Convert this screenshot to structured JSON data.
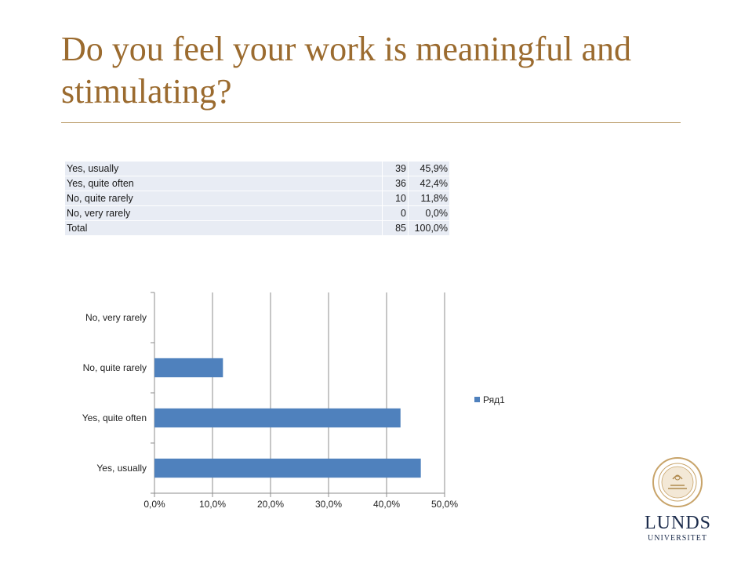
{
  "slide": {
    "title": "Do you feel your work is meaningful and stimulating?"
  },
  "table": {
    "rows": [
      {
        "label": "Yes, usually",
        "count": "39",
        "percent": "45,9%"
      },
      {
        "label": "Yes, quite often",
        "count": "36",
        "percent": "42,4%"
      },
      {
        "label": "No, quite rarely",
        "count": "10",
        "percent": "11,8%"
      },
      {
        "label": "No, very rarely",
        "count": "0",
        "percent": "0,0%"
      },
      {
        "label": "Total",
        "count": "85",
        "percent": "100,0%"
      }
    ]
  },
  "chart_data": {
    "type": "bar",
    "orientation": "horizontal",
    "categories": [
      "No, very rarely",
      "No, quite rarely",
      "Yes, quite often",
      "Yes, usually"
    ],
    "series": [
      {
        "name": "Ряд1",
        "values": [
          0.0,
          11.8,
          42.4,
          45.9
        ],
        "color": "#4f81bd"
      }
    ],
    "xlim": [
      0,
      50
    ],
    "x_ticks": [
      "0,0%",
      "10,0%",
      "20,0%",
      "30,0%",
      "40,0%",
      "50,0%"
    ],
    "grid": true,
    "legend": "right"
  },
  "logo": {
    "name": "LUNDS",
    "sub": "UNIVERSITET",
    "icon": "university-seal-icon"
  }
}
